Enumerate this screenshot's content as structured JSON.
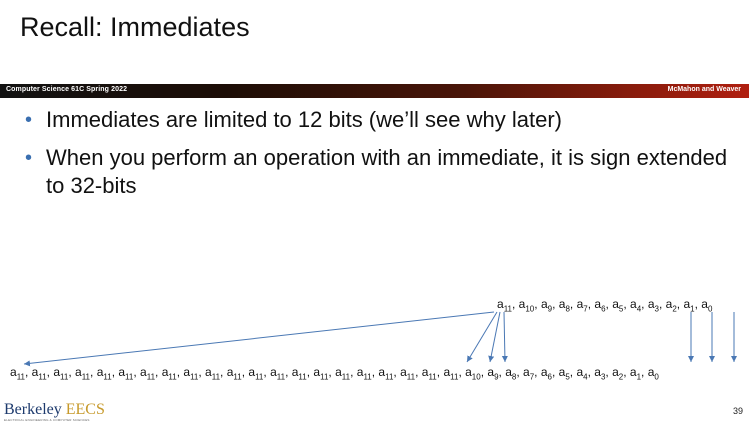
{
  "slide": {
    "title": "Recall: Immediates",
    "course_label": "Computer Science 61C Spring 2022",
    "instructors": "McMahon and Weaver",
    "page_number": "39"
  },
  "bullets": [
    "Immediates are limited to 12 bits (we’ll see why later)",
    "When you perform an operation with an immediate, it is sign extended to 32-bits"
  ],
  "diagram": {
    "top_sequence": [
      "11",
      "10",
      "9",
      "8",
      "7",
      "6",
      "5",
      "4",
      "3",
      "2",
      "1",
      "0"
    ],
    "bottom_sequence": [
      "11",
      "11",
      "11",
      "11",
      "11",
      "11",
      "11",
      "11",
      "11",
      "11",
      "11",
      "11",
      "11",
      "11",
      "11",
      "11",
      "11",
      "11",
      "11",
      "11",
      "11",
      "10",
      "9",
      "8",
      "7",
      "6",
      "5",
      "4",
      "3",
      "2",
      "1",
      "0"
    ],
    "arrow_color": "#4a78b4"
  },
  "logo": {
    "name": "Berkeley EECS",
    "subtitle": "ELECTRICAL ENGINEERING & COMPUTER SCIENCES"
  }
}
